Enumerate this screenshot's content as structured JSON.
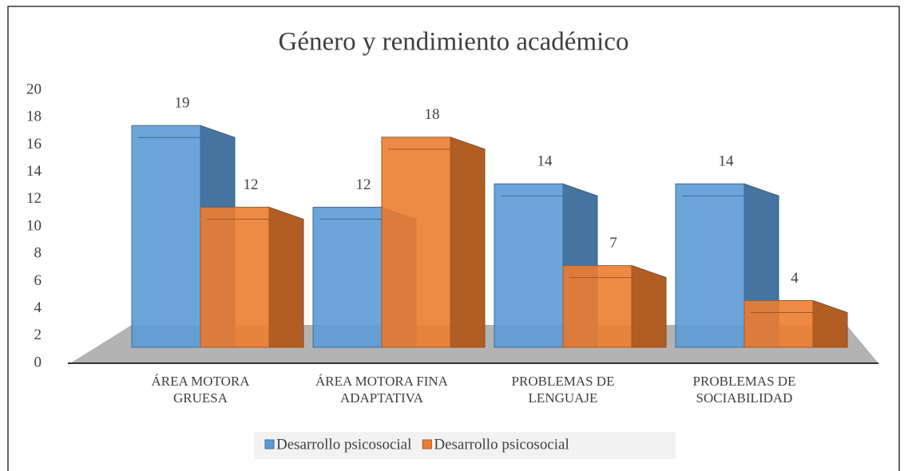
{
  "chart_data": {
    "type": "bar",
    "title": "Género y rendimiento académico",
    "categories": [
      "ÁREA MOTORA GRUESA",
      "ÁREA MOTORA FINA ADAPTATIVA",
      "PROBLEMAS DE LENGUAJE",
      "PROBLEMAS DE SOCIABILIDAD"
    ],
    "series": [
      {
        "name": "Desarrollo psicosocial",
        "color": "#5b9bd5",
        "values": [
          19,
          12,
          14,
          14
        ]
      },
      {
        "name": "Desarrollo psicosocial",
        "color": "#ed7d31",
        "values": [
          12,
          18,
          7,
          4
        ]
      }
    ],
    "ylim": [
      0,
      20
    ],
    "yticks": [
      0,
      2,
      4,
      6,
      8,
      10,
      12,
      14,
      16,
      18,
      20
    ],
    "legend": "bottom"
  }
}
